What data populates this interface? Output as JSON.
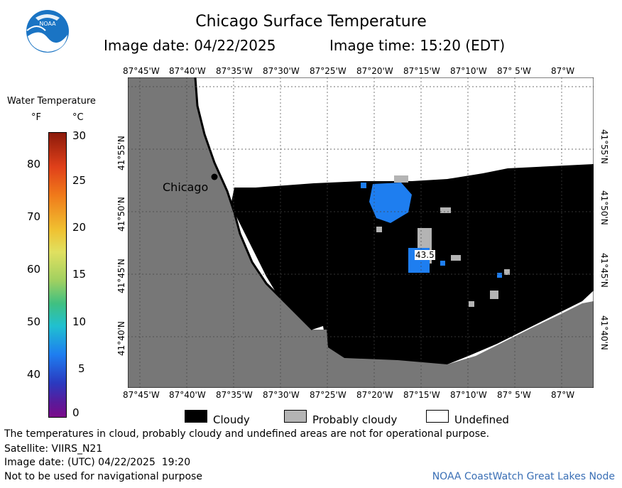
{
  "title": "Chicago Surface Temperature",
  "image_date_label": "Image date: 04/22/2025",
  "image_time_label": "Image time: 15:20 (EDT)",
  "longitude_ticks": [
    "87°45'W",
    "87°40'W",
    "87°35'W",
    "87°30'W",
    "87°25'W",
    "87°20'W",
    "87°15'W",
    "87°10'W",
    "87° 5'W",
    "87°W"
  ],
  "latitude_ticks": [
    "41°55'N",
    "41°50'N",
    "41°45'N",
    "41°40'N"
  ],
  "legend": {
    "title": "Water Temperature",
    "unit_f": "°F",
    "unit_c": "°C",
    "f_ticks": [
      "80",
      "70",
      "60",
      "50",
      "40"
    ],
    "c_ticks": [
      "30",
      "25",
      "20",
      "15",
      "10",
      "5",
      "0"
    ]
  },
  "place_label": "Chicago",
  "temperature_label": "43.5",
  "key": {
    "cloudy": "Cloudy",
    "probably_cloudy": "Probably cloudy",
    "undefined": "Undefined"
  },
  "notes": {
    "disclaimer": "The temperatures in cloud, probably cloudy and undefined areas are not for operational purpose.",
    "satellite": "Satellite: VIIRS_N21",
    "utc_date": "Image date: (UTC) 04/22/2025  19:20",
    "navigation": "Not to be used for navigational purpose",
    "credit": "NOAA CoastWatch Great Lakes Node"
  },
  "colors": {
    "land": "#777777",
    "cloud": "#000000",
    "probably_cloud": "#b4b4b4",
    "water_temp": "#1e7ef0",
    "noaa_blue": "#1a74c4"
  }
}
